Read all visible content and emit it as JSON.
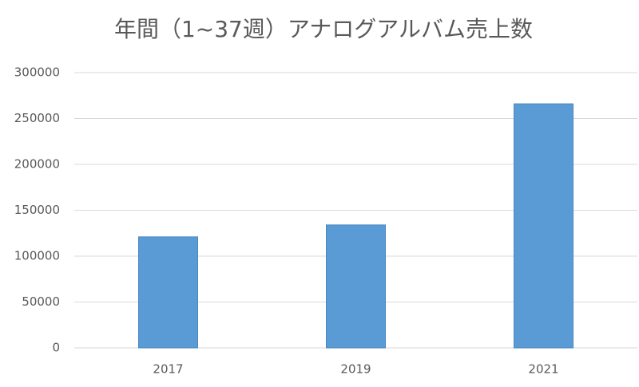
{
  "chart_data": {
    "type": "bar",
    "title": "年間（1~37週）アナログアルバム売上数",
    "categories": [
      "2017",
      "2019",
      "2021"
    ],
    "values": [
      121000,
      134000,
      266000
    ],
    "color": "#5b9bd5",
    "ylim": [
      0,
      300000
    ],
    "yticks": [
      0,
      50000,
      100000,
      150000,
      200000,
      250000,
      300000
    ],
    "grid": true
  }
}
